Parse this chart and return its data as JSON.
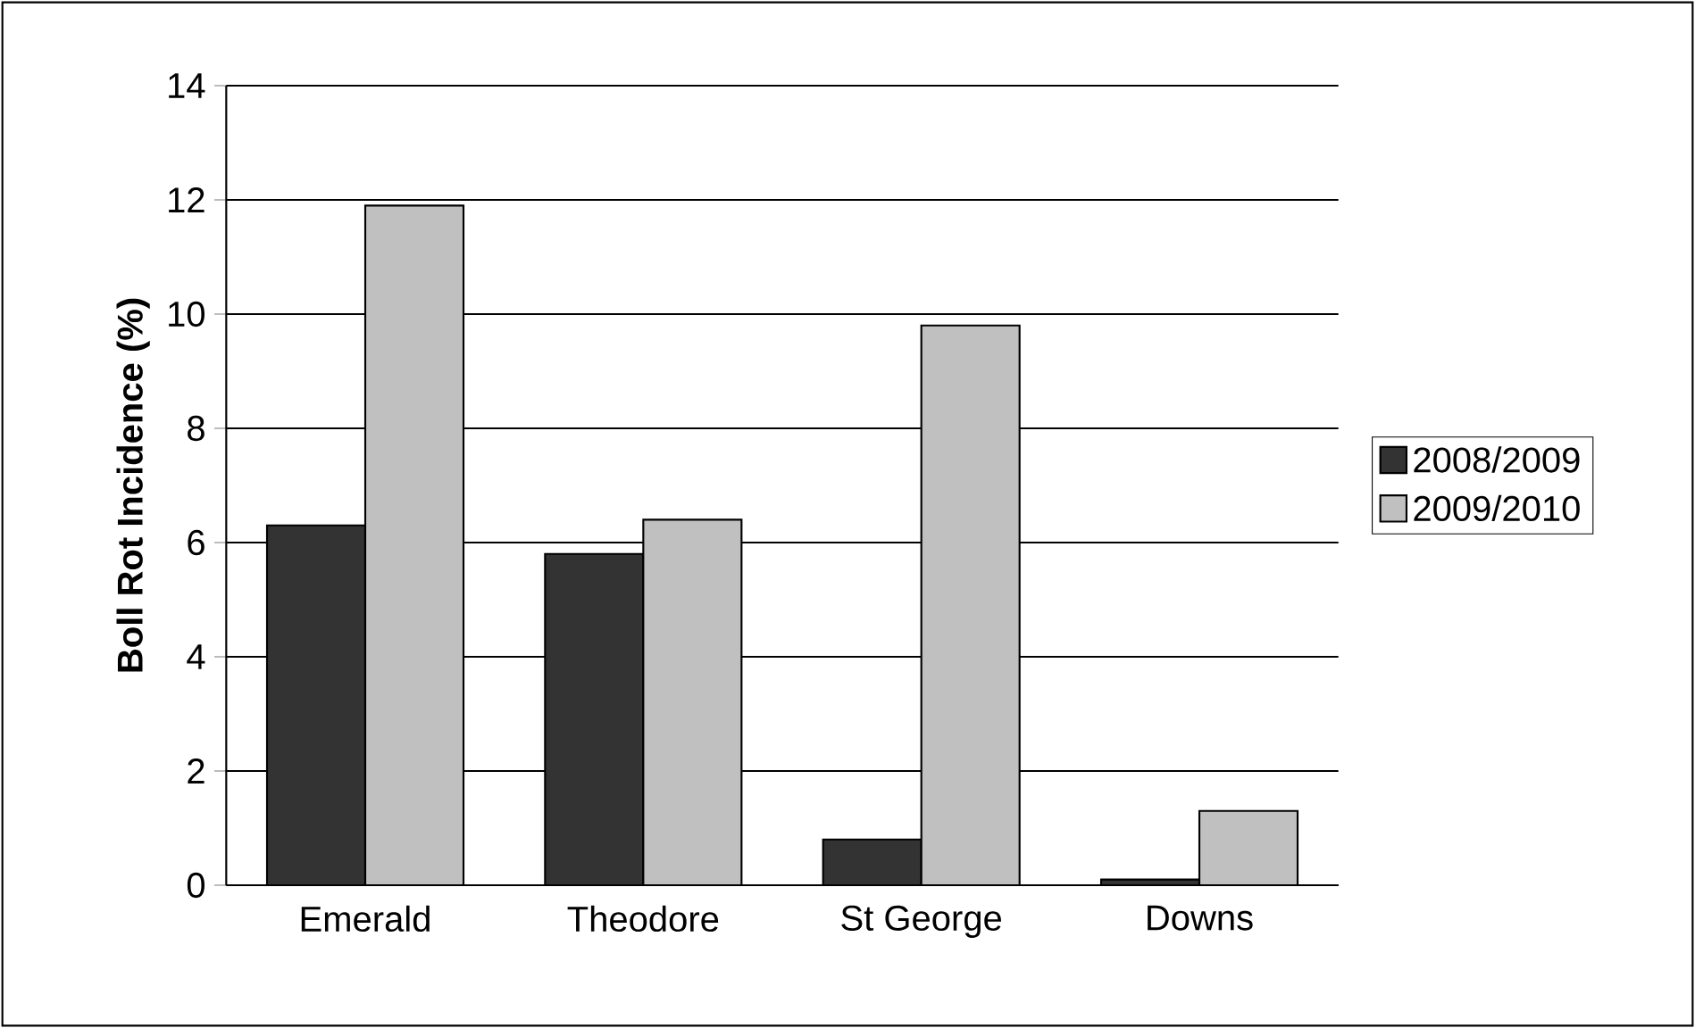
{
  "chart_data": {
    "type": "bar",
    "ylabel": "Boll Rot Incidence (%)",
    "categories": [
      "Emerald",
      "Theodore",
      "St George",
      "Downs"
    ],
    "series": [
      {
        "name": "2008/2009",
        "color": "#333333",
        "values": [
          6.3,
          5.8,
          0.8,
          0.1
        ]
      },
      {
        "name": "2009/2010",
        "color": "#c0c0c0",
        "values": [
          11.9,
          6.4,
          9.8,
          1.3
        ]
      }
    ],
    "ylim": [
      0,
      14
    ],
    "yticks": [
      0,
      2,
      4,
      6,
      8,
      10,
      12,
      14
    ],
    "grid": "y",
    "legend": "right"
  }
}
